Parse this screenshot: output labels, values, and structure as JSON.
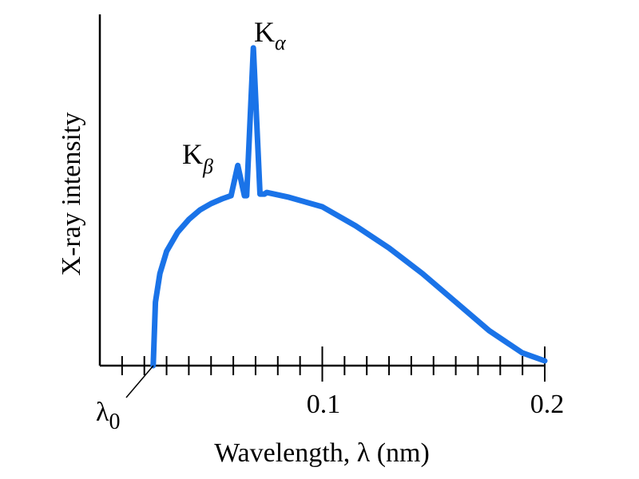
{
  "chart_data": {
    "type": "line",
    "title": "",
    "xlabel": "Wavelength, λ (nm)",
    "ylabel": "X-ray intensity",
    "xlim": [
      0,
      0.2
    ],
    "ylim": [
      0,
      1
    ],
    "grid": false,
    "x_ticks": {
      "major": [
        0.1,
        0.2
      ],
      "minor_step": 0.01
    },
    "tick_labels": [
      {
        "x": 0.1,
        "text": "0.1"
      },
      {
        "x": 0.2,
        "text": "0.2"
      }
    ],
    "lambda0": {
      "x": 0.024,
      "symbol": "λ",
      "subscript": "0"
    },
    "series": [
      {
        "color": "#1a73e8",
        "x": [
          0.024,
          0.025,
          0.027,
          0.03,
          0.035,
          0.04,
          0.045,
          0.05,
          0.055,
          0.059,
          0.062,
          0.065,
          0.066,
          0.069,
          0.072,
          0.074,
          0.075,
          0.085,
          0.1,
          0.115,
          0.13,
          0.145,
          0.16,
          0.175,
          0.19,
          0.2
        ],
        "y": [
          0.0,
          0.2,
          0.29,
          0.36,
          0.42,
          0.46,
          0.49,
          0.51,
          0.525,
          0.535,
          0.63,
          0.535,
          0.535,
          1.0,
          0.54,
          0.54,
          0.545,
          0.53,
          0.5,
          0.44,
          0.37,
          0.29,
          0.2,
          0.11,
          0.04,
          0.015
        ]
      }
    ],
    "annotations": [
      {
        "symbol": "K",
        "subscript": "β",
        "x": 0.062,
        "y": 0.63
      },
      {
        "symbol": "K",
        "subscript": "α",
        "x": 0.069,
        "y": 1.0
      }
    ]
  }
}
